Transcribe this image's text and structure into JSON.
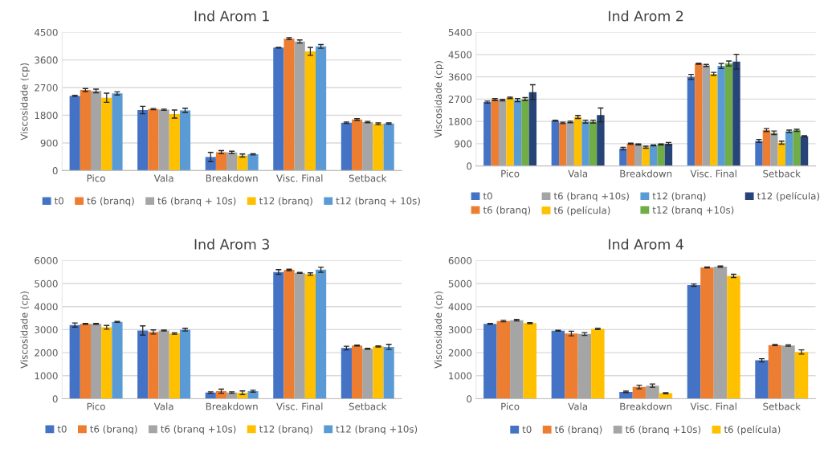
{
  "chart_data": [
    {
      "type": "bar",
      "title": "Ind Arom 1",
      "ylabel": "Viscosidade (cp)",
      "categories": [
        "Pico",
        "Vala",
        "Breakdown",
        "Visc. Final",
        "Setback"
      ],
      "ylim": [
        0,
        4500
      ],
      "yticks": [
        0,
        900,
        1800,
        2700,
        3600,
        4500
      ],
      "grid": "y",
      "legend": "bottom",
      "series": [
        {
          "name": "t0",
          "color": "#4472c4",
          "values": [
            2430,
            1970,
            440,
            4000,
            1560
          ],
          "errors": [
            20,
            120,
            150,
            10,
            20
          ]
        },
        {
          "name": "t6 (branq)",
          "color": "#ed7d31",
          "values": [
            2620,
            2000,
            600,
            4290,
            1660
          ],
          "errors": [
            50,
            20,
            50,
            30,
            30
          ]
        },
        {
          "name": "t6 (branq + 10s)",
          "color": "#a5a5a5",
          "values": [
            2590,
            1980,
            590,
            4200,
            1580
          ],
          "errors": [
            60,
            20,
            40,
            50,
            20
          ]
        },
        {
          "name": "t12 (branq)",
          "color": "#ffc000",
          "values": [
            2370,
            1840,
            490,
            3880,
            1520
          ],
          "errors": [
            150,
            130,
            50,
            130,
            30
          ]
        },
        {
          "name": "t12 (branq + 10s)",
          "color": "#5b9bd5",
          "values": [
            2510,
            1960,
            530,
            4040,
            1530
          ],
          "errors": [
            50,
            70,
            20,
            60,
            20
          ]
        }
      ]
    },
    {
      "type": "bar",
      "title": "Ind Arom 2",
      "ylabel": "Viscosidade (cp)",
      "categories": [
        "Pico",
        "Vala",
        "Breakdown",
        "Visc. Final",
        "Setback"
      ],
      "ylim": [
        0,
        5400
      ],
      "yticks": [
        0,
        900,
        1800,
        2700,
        3600,
        4500,
        5400
      ],
      "grid": "y",
      "legend": "bottom",
      "series": [
        {
          "name": "t0",
          "color": "#4472c4",
          "values": [
            2580,
            1830,
            700,
            3600,
            1010
          ],
          "errors": [
            40,
            20,
            50,
            100,
            60
          ]
        },
        {
          "name": "t6 (branq)",
          "color": "#ed7d31",
          "values": [
            2680,
            1740,
            900,
            4130,
            1450
          ],
          "errors": [
            40,
            30,
            20,
            20,
            60
          ]
        },
        {
          "name": "t6 (branq +10s)",
          "color": "#a5a5a5",
          "values": [
            2660,
            1780,
            870,
            4060,
            1340
          ],
          "errors": [
            30,
            30,
            20,
            40,
            70
          ]
        },
        {
          "name": "t6 (película)",
          "color": "#ffc000",
          "values": [
            2750,
            1980,
            760,
            3720,
            940
          ],
          "errors": [
            30,
            60,
            40,
            60,
            60
          ]
        },
        {
          "name": "t12 (branq)",
          "color": "#5b9bd5",
          "values": [
            2660,
            1790,
            830,
            4040,
            1400
          ],
          "errors": [
            60,
            60,
            20,
            100,
            50
          ]
        },
        {
          "name": "t12 (branq +10s)",
          "color": "#70ad47",
          "values": [
            2700,
            1790,
            870,
            4140,
            1440
          ],
          "errors": [
            60,
            60,
            20,
            100,
            40
          ]
        },
        {
          "name": "t12 (película)",
          "color": "#264478",
          "values": [
            2980,
            2060,
            900,
            4210,
            1200
          ],
          "errors": [
            300,
            280,
            50,
            300,
            20
          ]
        }
      ]
    },
    {
      "type": "bar",
      "title": "Ind Arom 3",
      "ylabel": "Viscosidade (cp)",
      "categories": [
        "Pico",
        "Vala",
        "Breakdown",
        "Visc. Final",
        "Setback"
      ],
      "ylim": [
        0,
        6000
      ],
      "yticks": [
        0,
        1000,
        2000,
        3000,
        4000,
        5000,
        6000
      ],
      "grid": "y",
      "legend": "bottom",
      "series": [
        {
          "name": "t0",
          "color": "#4472c4",
          "values": [
            3200,
            2960,
            270,
            5500,
            2200
          ],
          "errors": [
            90,
            200,
            30,
            100,
            80
          ]
        },
        {
          "name": "t6 (branq)",
          "color": "#ed7d31",
          "values": [
            3250,
            2900,
            330,
            5590,
            2310
          ],
          "errors": [
            20,
            90,
            90,
            30,
            20
          ]
        },
        {
          "name": "t6 (branq +10s)",
          "color": "#a5a5a5",
          "values": [
            3250,
            2960,
            270,
            5460,
            2170
          ],
          "errors": [
            20,
            20,
            30,
            20,
            20
          ]
        },
        {
          "name": "t12 (branq)",
          "color": "#ffc000",
          "values": [
            3100,
            2830,
            260,
            5410,
            2270
          ],
          "errors": [
            80,
            30,
            80,
            50,
            20
          ]
        },
        {
          "name": "t12 (branq +10s)",
          "color": "#5b9bd5",
          "values": [
            3340,
            3000,
            330,
            5600,
            2250
          ],
          "errors": [
            20,
            60,
            40,
            110,
            110
          ]
        }
      ]
    },
    {
      "type": "bar",
      "title": "Ind Arom 4",
      "ylabel": "Viscosidade (cp)",
      "categories": [
        "Pico",
        "Vala",
        "Breakdown",
        "Visc. Final",
        "Setback"
      ],
      "ylim": [
        0,
        6000
      ],
      "yticks": [
        0,
        1000,
        2000,
        3000,
        4000,
        5000,
        6000
      ],
      "grid": "y",
      "legend": "bottom",
      "series": [
        {
          "name": "t0",
          "color": "#4472c4",
          "values": [
            3250,
            2950,
            300,
            4930,
            1670
          ],
          "errors": [
            20,
            20,
            30,
            50,
            70
          ]
        },
        {
          "name": "t6 (branq)",
          "color": "#ed7d31",
          "values": [
            3370,
            2830,
            510,
            5700,
            2330
          ],
          "errors": [
            30,
            100,
            80,
            20,
            20
          ]
        },
        {
          "name": "t6 (branq +10s)",
          "color": "#a5a5a5",
          "values": [
            3410,
            2810,
            570,
            5730,
            2310
          ],
          "errors": [
            30,
            60,
            70,
            30,
            30
          ]
        },
        {
          "name": "t6 (película)",
          "color": "#ffc000",
          "values": [
            3280,
            3030,
            240,
            5330,
            2030
          ],
          "errors": [
            20,
            30,
            20,
            70,
            90
          ]
        }
      ]
    }
  ]
}
